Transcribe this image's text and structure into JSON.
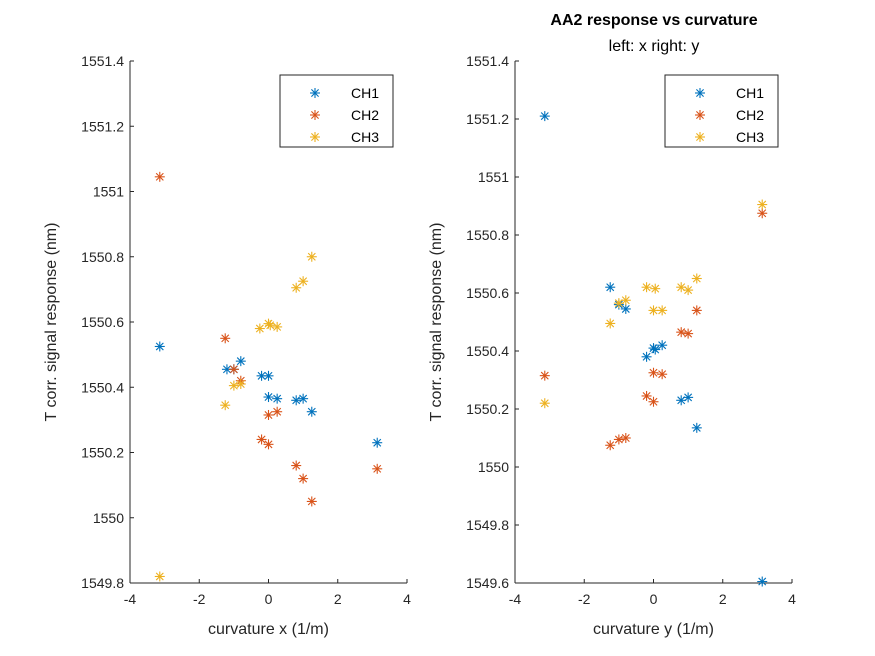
{
  "figure": {
    "title": "AA2 response vs curvature",
    "subtitle": "left: x  right: y"
  },
  "colors": {
    "CH1": "#0072BD",
    "CH2": "#D95319",
    "CH3": "#EDB120"
  },
  "chart_data": [
    {
      "type": "scatter",
      "title": "",
      "xlabel": "curvature x (1/m)",
      "ylabel": "T corr. signal response (nm)",
      "xlim": [
        -4,
        4
      ],
      "ylim": [
        1549.8,
        1551.4
      ],
      "xticks": [
        -4,
        -2,
        0,
        2,
        4
      ],
      "xtick_labels": [
        "-4",
        "-2",
        "0",
        "2",
        "4"
      ],
      "yticks": [
        1549.8,
        1550,
        1550.2,
        1550.4,
        1550.6,
        1550.8,
        1551,
        1551.2,
        1551.4
      ],
      "ytick_labels": [
        "1549.8",
        "1550",
        "1550.2",
        "1550.4",
        "1550.6",
        "1550.8",
        "1551",
        "1551.2",
        "1551.4"
      ],
      "grid": false,
      "legend": "top-right",
      "series": [
        {
          "name": "CH1",
          "points": [
            [
              -3.14,
              1550.525
            ],
            [
              -1.2,
              1550.455
            ],
            [
              -1.0,
              1550.455
            ],
            [
              -0.8,
              1550.48
            ],
            [
              -0.2,
              1550.435
            ],
            [
              0.0,
              1550.435
            ],
            [
              0.0,
              1550.37
            ],
            [
              0.25,
              1550.365
            ],
            [
              0.8,
              1550.36
            ],
            [
              1.0,
              1550.365
            ],
            [
              1.25,
              1550.325
            ],
            [
              3.14,
              1550.23
            ]
          ]
        },
        {
          "name": "CH2",
          "points": [
            [
              -3.14,
              1551.045
            ],
            [
              -1.25,
              1550.55
            ],
            [
              -1.0,
              1550.455
            ],
            [
              -0.8,
              1550.42
            ],
            [
              -0.2,
              1550.24
            ],
            [
              0.0,
              1550.225
            ],
            [
              0.0,
              1550.315
            ],
            [
              0.25,
              1550.325
            ],
            [
              0.8,
              1550.16
            ],
            [
              1.0,
              1550.12
            ],
            [
              1.25,
              1550.05
            ],
            [
              3.14,
              1550.15
            ]
          ]
        },
        {
          "name": "CH3",
          "points": [
            [
              -3.14,
              1549.82
            ],
            [
              -1.25,
              1550.345
            ],
            [
              -1.0,
              1550.405
            ],
            [
              -0.8,
              1550.41
            ],
            [
              -0.25,
              1550.58
            ],
            [
              0.0,
              1550.595
            ],
            [
              0.05,
              1550.59
            ],
            [
              0.25,
              1550.585
            ],
            [
              0.8,
              1550.705
            ],
            [
              1.0,
              1550.725
            ],
            [
              1.25,
              1550.8
            ]
          ]
        }
      ]
    },
    {
      "type": "scatter",
      "title": "",
      "xlabel": "curvature y (1/m)",
      "ylabel": "T corr. signal response (nm)",
      "xlim": [
        -4,
        4
      ],
      "ylim": [
        1549.6,
        1551.4
      ],
      "xticks": [
        -4,
        -2,
        0,
        2,
        4
      ],
      "xtick_labels": [
        "-4",
        "-2",
        "0",
        "2",
        "4"
      ],
      "yticks": [
        1549.6,
        1549.8,
        1550,
        1550.2,
        1550.4,
        1550.6,
        1550.8,
        1551,
        1551.2,
        1551.4
      ],
      "ytick_labels": [
        "1549.6",
        "1549.8",
        "1550",
        "1550.2",
        "1550.4",
        "1550.6",
        "1550.8",
        "1551",
        "1551.2",
        "1551.4"
      ],
      "grid": false,
      "legend": "top-right",
      "series": [
        {
          "name": "CH1",
          "points": [
            [
              -3.14,
              1551.21
            ],
            [
              -1.25,
              1550.62
            ],
            [
              -1.0,
              1550.56
            ],
            [
              -0.8,
              1550.545
            ],
            [
              -0.2,
              1550.38
            ],
            [
              0.0,
              1550.41
            ],
            [
              0.05,
              1550.405
            ],
            [
              0.25,
              1550.42
            ],
            [
              0.8,
              1550.23
            ],
            [
              1.0,
              1550.24
            ],
            [
              1.25,
              1550.135
            ],
            [
              3.14,
              1549.605
            ]
          ]
        },
        {
          "name": "CH2",
          "points": [
            [
              -3.14,
              1550.315
            ],
            [
              -1.25,
              1550.075
            ],
            [
              -1.0,
              1550.095
            ],
            [
              -0.8,
              1550.1
            ],
            [
              -0.2,
              1550.245
            ],
            [
              0.0,
              1550.225
            ],
            [
              0.0,
              1550.325
            ],
            [
              0.25,
              1550.32
            ],
            [
              0.8,
              1550.465
            ],
            [
              1.0,
              1550.46
            ],
            [
              1.25,
              1550.54
            ],
            [
              3.14,
              1550.875
            ]
          ]
        },
        {
          "name": "CH3",
          "points": [
            [
              -3.14,
              1550.22
            ],
            [
              -1.25,
              1550.495
            ],
            [
              -1.0,
              1550.565
            ],
            [
              -0.8,
              1550.575
            ],
            [
              -0.2,
              1550.62
            ],
            [
              0.0,
              1550.54
            ],
            [
              0.05,
              1550.615
            ],
            [
              0.25,
              1550.54
            ],
            [
              0.8,
              1550.62
            ],
            [
              1.0,
              1550.61
            ],
            [
              1.25,
              1550.65
            ],
            [
              3.14,
              1550.905
            ]
          ]
        }
      ]
    }
  ]
}
